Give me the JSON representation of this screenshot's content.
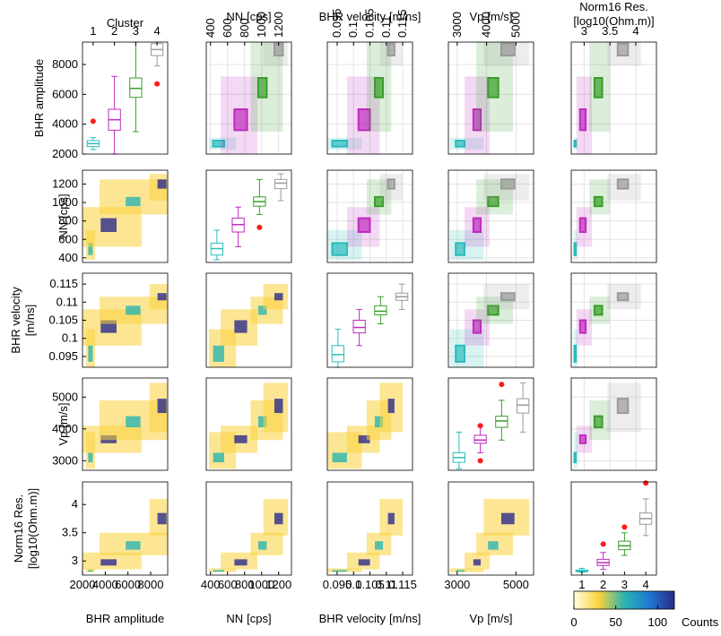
{
  "chart_data": {
    "type": "scatter-matrix",
    "clusters": {
      "name": "Cluster",
      "labels": [
        1,
        2,
        3,
        4
      ],
      "colors": [
        "#2bbcbc",
        "#bf2bbf",
        "#3a9e2a",
        "#9a9a9a"
      ],
      "lim": [
        0.5,
        4.5
      ]
    },
    "outlier_color": "#ff1a1a",
    "variables": [
      {
        "name": "BHR amplitude",
        "lim": [
          2000,
          9500
        ],
        "ticks": [
          2000,
          4000,
          6000,
          8000
        ],
        "boxes": [
          {
            "stats": [
              2300,
              2500,
              2700,
              2900,
              3100
            ],
            "outliers": [
              4200
            ]
          },
          {
            "stats": [
              2000,
              3600,
              4300,
              5000,
              7200
            ],
            "outliers": []
          },
          {
            "stats": [
              3500,
              5800,
              6400,
              7100,
              9500
            ],
            "outliers": []
          },
          {
            "stats": [
              7900,
              8600,
              9000,
              9400,
              9500
            ],
            "outliers": [
              6700
            ]
          }
        ]
      },
      {
        "name": "NN",
        "unit": "[cps]",
        "lim": [
          350,
          1350
        ],
        "ticks": [
          400,
          600,
          800,
          1000,
          1200
        ],
        "boxes": [
          {
            "stats": [
              380,
              430,
              500,
              560,
              700
            ],
            "outliers": []
          },
          {
            "stats": [
              520,
              680,
              760,
              830,
              950
            ],
            "outliers": []
          },
          {
            "stats": [
              870,
              960,
              1010,
              1060,
              1250
            ],
            "outliers": [
              730
            ]
          },
          {
            "stats": [
              1020,
              1150,
              1210,
              1250,
              1310
            ],
            "outliers": []
          }
        ]
      },
      {
        "name": "BHR velocity",
        "unit": "[m/ns]",
        "lim": [
          0.092,
          0.118
        ],
        "ticks": [
          0.095,
          0.1,
          0.105,
          0.11,
          0.115
        ],
        "boxes": [
          {
            "stats": [
              0.092,
              0.0935,
              0.0955,
              0.098,
              0.1025
            ],
            "outliers": []
          },
          {
            "stats": [
              0.098,
              0.1015,
              0.103,
              0.105,
              0.108
            ],
            "outliers": []
          },
          {
            "stats": [
              0.104,
              0.1065,
              0.1075,
              0.109,
              0.1115
            ],
            "outliers": []
          },
          {
            "stats": [
              0.108,
              0.1105,
              0.1115,
              0.1125,
              0.115
            ],
            "outliers": []
          }
        ]
      },
      {
        "name": "Vp",
        "unit": "[m/s]",
        "lim": [
          2700,
          5600
        ],
        "ticks": [
          3000,
          4000,
          5000
        ],
        "bottom_ticks": [
          3000,
          5000
        ],
        "boxes": [
          {
            "stats": [
              2750,
              2950,
              3100,
              3250,
              3900
            ],
            "outliers": []
          },
          {
            "stats": [
              3250,
              3550,
              3650,
              3800,
              4100
            ],
            "outliers": [
              3000,
              4100
            ]
          },
          {
            "stats": [
              3650,
              4050,
              4250,
              4400,
              4900
            ],
            "outliers": [
              5400
            ]
          },
          {
            "stats": [
              3900,
              4500,
              4750,
              4950,
              5450
            ],
            "outliers": []
          }
        ]
      },
      {
        "name": "Norm16 Res.",
        "unit": "[log10(Ohm.m)]",
        "lim": [
          2.75,
          4.4
        ],
        "ticks": [
          3,
          3.5,
          4
        ],
        "boxes": [
          {
            "stats": [
              2.8,
              2.81,
              2.82,
              2.84,
              2.87
            ],
            "outliers": []
          },
          {
            "stats": [
              2.85,
              2.92,
              2.97,
              3.03,
              3.15
            ],
            "outliers": [
              3.3
            ]
          },
          {
            "stats": [
              3.1,
              3.2,
              3.27,
              3.35,
              3.5
            ],
            "outliers": [
              3.6
            ]
          },
          {
            "stats": [
              3.45,
              3.65,
              3.75,
              3.85,
              4.1
            ],
            "outliers": [
              4.38
            ]
          }
        ]
      }
    ],
    "colorbar": {
      "lim": [
        0,
        120
      ],
      "ticks": [
        0,
        50,
        100
      ],
      "label": "Counts",
      "colors": [
        "#ffffe0",
        "#f9d23c",
        "#2ab5b0",
        "#1f78d1",
        "#2b2a8c"
      ]
    }
  }
}
